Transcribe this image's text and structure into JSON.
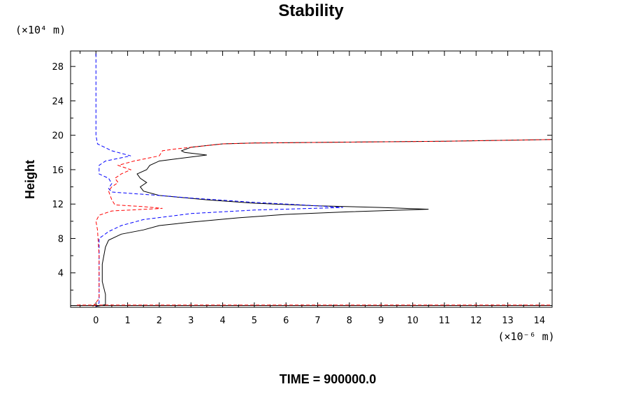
{
  "chart_data": {
    "type": "line",
    "title": "Stability",
    "ylabel": "Height",
    "y_unit": "(×10⁴ m)",
    "x_unit": "(×10⁻⁶ m)",
    "footer": "TIME = 900000.0",
    "xlim": [
      -0.8,
      14.4
    ],
    "ylim": [
      0,
      29.8
    ],
    "x_ticks": [
      0,
      1,
      2,
      3,
      4,
      5,
      6,
      7,
      8,
      9,
      10,
      11,
      12,
      13,
      14
    ],
    "y_ticks": [
      4,
      8,
      12,
      16,
      20,
      24,
      28
    ],
    "grid": false,
    "series": [
      {
        "color": "#000000",
        "dash": "solid",
        "points": [
          [
            0,
            0.1
          ],
          [
            0.3,
            0.3
          ],
          [
            0.3,
            1.5
          ],
          [
            0.2,
            3
          ],
          [
            0.2,
            5
          ],
          [
            0.3,
            7
          ],
          [
            0.4,
            7.8
          ],
          [
            0.8,
            8.5
          ],
          [
            1.5,
            9
          ],
          [
            2,
            9.5
          ],
          [
            3,
            9.9
          ],
          [
            4.5,
            10.4
          ],
          [
            6,
            10.8
          ],
          [
            8,
            11.1
          ],
          [
            10.5,
            11.4
          ],
          [
            9,
            11.6
          ],
          [
            7,
            11.8
          ],
          [
            5,
            12.1
          ],
          [
            3.5,
            12.5
          ],
          [
            2,
            13
          ],
          [
            1.5,
            13.5
          ],
          [
            1.4,
            14
          ],
          [
            1.6,
            14.5
          ],
          [
            1.4,
            15
          ],
          [
            1.3,
            15.5
          ],
          [
            1.6,
            16
          ],
          [
            1.7,
            16.5
          ],
          [
            2,
            17
          ],
          [
            3.5,
            17.7
          ],
          [
            2.8,
            18
          ],
          [
            2.7,
            18.2
          ],
          [
            3,
            18.6
          ],
          [
            4,
            19
          ],
          [
            5,
            19.1
          ],
          [
            8,
            19.2
          ],
          [
            11,
            19.3
          ],
          [
            14.4,
            19.5
          ]
        ]
      },
      {
        "color": "#0000ff",
        "dash": "dashed",
        "points": [
          [
            0,
            29.5
          ],
          [
            0,
            24
          ],
          [
            0,
            20
          ],
          [
            0.05,
            19
          ],
          [
            0.5,
            18.2
          ],
          [
            1.1,
            17.6
          ],
          [
            0.3,
            17
          ],
          [
            0.1,
            16.5
          ],
          [
            0.1,
            15.5
          ],
          [
            0.4,
            15
          ],
          [
            0.5,
            14.4
          ],
          [
            0.4,
            13.8
          ],
          [
            0.5,
            13.4
          ],
          [
            2,
            13
          ],
          [
            3,
            12.7
          ],
          [
            5,
            12.2
          ],
          [
            6.5,
            11.9
          ],
          [
            7.8,
            11.6
          ],
          [
            5,
            11.3
          ],
          [
            3,
            10.9
          ],
          [
            1.5,
            10.2
          ],
          [
            0.8,
            9.5
          ],
          [
            0.4,
            8.8
          ],
          [
            0.1,
            8
          ],
          [
            0.1,
            6
          ],
          [
            0.1,
            4
          ],
          [
            0.1,
            2
          ],
          [
            0.1,
            0.5
          ],
          [
            0,
            0.1
          ]
        ]
      },
      {
        "color": "#ff0000",
        "dash": "dashed",
        "points": [
          [
            -0.1,
            0.1
          ],
          [
            0.1,
            1
          ],
          [
            0.1,
            3
          ],
          [
            0.1,
            6
          ],
          [
            0.05,
            9
          ],
          [
            0,
            10
          ],
          [
            0.1,
            10.7
          ],
          [
            0.5,
            11.2
          ],
          [
            2.1,
            11.5
          ],
          [
            1.5,
            11.7
          ],
          [
            0.6,
            11.9
          ],
          [
            0.5,
            12.5
          ],
          [
            0.4,
            13.5
          ],
          [
            0.5,
            14
          ],
          [
            0.7,
            14.5
          ],
          [
            0.6,
            15
          ],
          [
            0.8,
            15.5
          ],
          [
            1.1,
            16
          ],
          [
            0.7,
            16.5
          ],
          [
            1.2,
            17
          ],
          [
            2,
            17.6
          ],
          [
            2.1,
            18.2
          ],
          [
            2.5,
            18.4
          ],
          [
            3,
            18.6
          ],
          [
            4,
            19
          ],
          [
            5,
            19.1
          ],
          [
            8,
            19.2
          ],
          [
            11,
            19.3
          ],
          [
            14.4,
            19.5
          ]
        ]
      },
      {
        "color": "#000000",
        "dash": "solid",
        "points": [
          [
            -0.8,
            0.2
          ],
          [
            14.4,
            0.2
          ]
        ]
      },
      {
        "color": "#ff0000",
        "dash": "dashed",
        "points": [
          [
            -0.6,
            0.25
          ],
          [
            14.4,
            0.25
          ]
        ]
      }
    ]
  }
}
